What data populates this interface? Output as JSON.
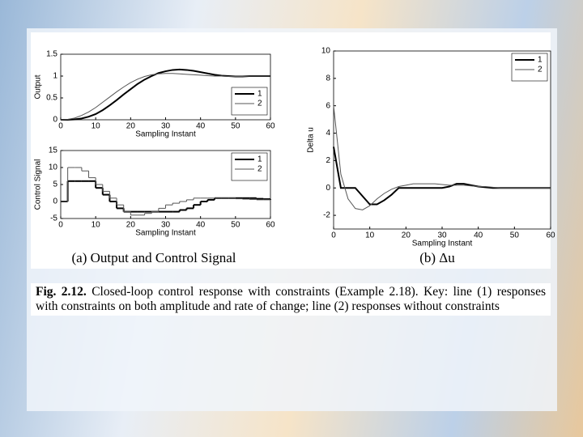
{
  "chart_data": [
    {
      "type": "line",
      "xlabel": "Sampling Instant",
      "ylabel": "Output",
      "x": [
        0,
        2,
        4,
        6,
        8,
        10,
        12,
        14,
        16,
        18,
        20,
        22,
        24,
        26,
        28,
        30,
        32,
        34,
        36,
        38,
        40,
        42,
        44,
        46,
        48,
        50,
        52,
        54,
        56,
        58,
        60
      ],
      "xlim": [
        0,
        60
      ],
      "xticks": [
        0,
        10,
        20,
        30,
        40,
        50,
        60
      ],
      "ylim": [
        0,
        1.5
      ],
      "yticks": [
        0,
        0.5,
        1,
        1.5
      ],
      "legend": "lower right",
      "series": [
        {
          "name": "1",
          "color": "#000000",
          "width": 2,
          "values": [
            0,
            0,
            0.01,
            0.03,
            0.07,
            0.13,
            0.22,
            0.33,
            0.45,
            0.58,
            0.7,
            0.82,
            0.92,
            1.0,
            1.07,
            1.11,
            1.14,
            1.15,
            1.14,
            1.12,
            1.09,
            1.06,
            1.03,
            1.01,
            1.0,
            0.99,
            0.99,
            1.0,
            1.0,
            1.0,
            1.0
          ]
        },
        {
          "name": "2",
          "color": "#555555",
          "width": 1,
          "values": [
            0,
            0.01,
            0.04,
            0.1,
            0.18,
            0.28,
            0.4,
            0.52,
            0.64,
            0.75,
            0.85,
            0.93,
            0.99,
            1.03,
            1.05,
            1.06,
            1.06,
            1.05,
            1.04,
            1.03,
            1.02,
            1.01,
            1.0,
            1.0,
            0.99,
            0.99,
            0.99,
            1.0,
            1.0,
            1.0,
            1.0
          ]
        }
      ]
    },
    {
      "type": "line",
      "step": true,
      "xlabel": "Sampling Instant",
      "ylabel": "Control Signal",
      "x": [
        0,
        2,
        4,
        6,
        8,
        10,
        12,
        14,
        16,
        18,
        20,
        22,
        24,
        26,
        28,
        30,
        32,
        34,
        36,
        38,
        40,
        42,
        44,
        46,
        48,
        50,
        52,
        54,
        56,
        58,
        60
      ],
      "xlim": [
        0,
        60
      ],
      "xticks": [
        0,
        10,
        20,
        30,
        40,
        50,
        60
      ],
      "ylim": [
        -5,
        15
      ],
      "yticks": [
        -5,
        0,
        5,
        10,
        15
      ],
      "legend": "upper right",
      "series": [
        {
          "name": "1",
          "color": "#000000",
          "width": 2,
          "values": [
            0,
            6,
            6,
            6,
            6,
            4,
            2,
            0,
            -2,
            -3,
            -3,
            -3,
            -3,
            -3,
            -3,
            -3,
            -3,
            -2.5,
            -2,
            -1,
            0,
            0.5,
            1,
            1,
            1,
            1,
            1,
            1,
            0.8,
            0.7,
            0.5
          ]
        },
        {
          "name": "2",
          "color": "#555555",
          "width": 1,
          "values": [
            0,
            10,
            10,
            9,
            7,
            5,
            3,
            1,
            -1,
            -3,
            -4,
            -4,
            -3.5,
            -3,
            -2,
            -1,
            -0.5,
            0,
            0.5,
            1,
            1,
            1,
            1,
            1,
            1,
            0.8,
            0.7,
            0.6,
            0.5,
            0.5,
            0.5
          ]
        }
      ]
    },
    {
      "type": "line",
      "xlabel": "Sampling Instant",
      "ylabel": "Delta u",
      "x": [
        0,
        2,
        4,
        6,
        8,
        10,
        12,
        14,
        16,
        18,
        20,
        22,
        24,
        26,
        28,
        30,
        32,
        34,
        36,
        38,
        40,
        42,
        44,
        46,
        48,
        50,
        52,
        54,
        56,
        58,
        60
      ],
      "xlim": [
        0,
        60
      ],
      "xticks": [
        0,
        10,
        20,
        30,
        40,
        50,
        60
      ],
      "ylim": [
        -3,
        10
      ],
      "yticks": [
        -2,
        0,
        2,
        4,
        6,
        8,
        10
      ],
      "legend": "upper right",
      "series": [
        {
          "name": "1",
          "color": "#000000",
          "width": 2,
          "values": [
            3,
            0,
            0,
            0,
            -0.6,
            -1.2,
            -1.2,
            -0.9,
            -0.5,
            0,
            0,
            0,
            0,
            0,
            0,
            0,
            0.1,
            0.3,
            0.3,
            0.2,
            0.1,
            0.05,
            0,
            0,
            0,
            0,
            0,
            0,
            0,
            0,
            0
          ]
        },
        {
          "name": "2",
          "color": "#555555",
          "width": 1,
          "values": [
            6,
            1,
            -0.8,
            -1.5,
            -1.6,
            -1.3,
            -0.8,
            -0.4,
            -0.1,
            0.1,
            0.2,
            0.3,
            0.3,
            0.3,
            0.3,
            0.25,
            0.2,
            0.2,
            0.2,
            0.15,
            0.1,
            0.1,
            0.05,
            0,
            0,
            0,
            0,
            0,
            0,
            0,
            0
          ]
        }
      ]
    }
  ],
  "figure": {
    "subcaptions": [
      "(a) Output and Control Signal",
      "(b) Δu"
    ],
    "caption_label": "Fig. 2.12.",
    "caption": "Closed-loop control response with constraints (Example 2.18). Key: line (1) responses with constraints on both amplitude and rate of change; line (2) responses without constraints"
  }
}
